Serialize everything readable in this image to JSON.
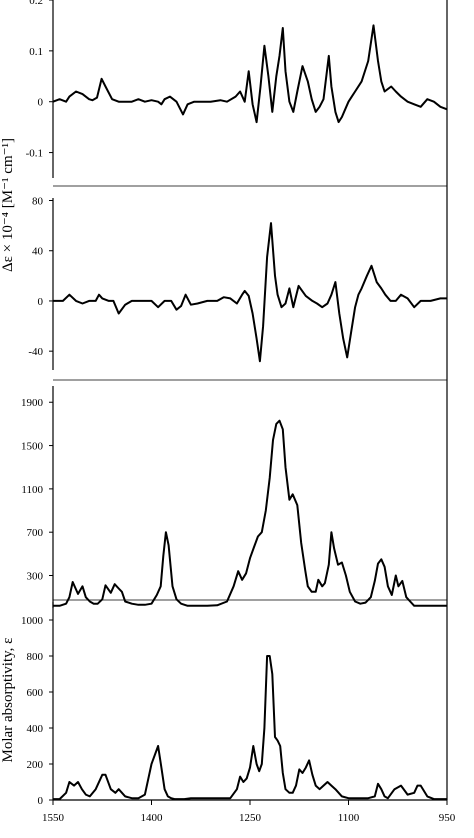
{
  "chart_data": {
    "type": "line",
    "x_axis": {
      "reversed": true,
      "xlim": [
        1550,
        950
      ],
      "ticks": [
        1550,
        1400,
        1250,
        1100,
        950
      ],
      "tick_labels": [
        "1550",
        "1400",
        "1250",
        "1100",
        "950"
      ]
    },
    "panels": [
      {
        "id": "p1",
        "ylim": [
          -0.15,
          0.2
        ],
        "yticks": [
          0.2,
          0.1,
          0,
          -0.1
        ],
        "ytick_labels": [
          "0.2",
          "0.1",
          "0",
          "-0.1"
        ],
        "ylabel": "",
        "series": [
          {
            "x": [
              1550,
              1540,
              1530,
              1525,
              1515,
              1505,
              1495,
              1490,
              1483,
              1476,
              1470,
              1460,
              1450,
              1440,
              1430,
              1420,
              1410,
              1400,
              1390,
              1385,
              1380,
              1372,
              1362,
              1352,
              1345,
              1335,
              1322,
              1310,
              1295,
              1285,
              1272,
              1265,
              1258,
              1252,
              1246,
              1240,
              1234,
              1228,
              1222,
              1216,
              1210,
              1205,
              1200,
              1196,
              1190,
              1184,
              1178,
              1170,
              1162,
              1156,
              1150,
              1144,
              1138,
              1130,
              1126,
              1120,
              1115,
              1110,
              1105,
              1100,
              1095,
              1090,
              1080,
              1070,
              1062,
              1055,
              1050,
              1045,
              1040,
              1035,
              1028,
              1020,
              1010,
              1000,
              990,
              980,
              970,
              960,
              950
            ],
            "y": [
              0,
              0.005,
              0,
              0.01,
              0.02,
              0.015,
              0.005,
              0.003,
              0.008,
              0.045,
              0.03,
              0.005,
              0,
              0,
              0,
              0.005,
              0,
              0.003,
              0,
              -0.005,
              0.005,
              0.01,
              0,
              -0.025,
              -0.005,
              0,
              0,
              0,
              0.003,
              0,
              0.01,
              0.02,
              0,
              0.06,
              -0.005,
              -0.04,
              0.03,
              0.11,
              0.05,
              -0.02,
              0.05,
              0.09,
              0.145,
              0.06,
              0,
              -0.02,
              0.02,
              0.07,
              0.04,
              0.005,
              -0.02,
              -0.01,
              0.005,
              0.09,
              0.03,
              -0.02,
              -0.04,
              -0.03,
              -0.015,
              0,
              0.01,
              0.02,
              0.04,
              0.08,
              0.15,
              0.08,
              0.04,
              0.02,
              0.025,
              0.03,
              0.02,
              0.01,
              0,
              -0.005,
              -0.01,
              0.005,
              0,
              -0.01,
              -0.015
            ]
          }
        ]
      },
      {
        "id": "p2",
        "ylim": [
          -55,
          82
        ],
        "yticks": [
          80,
          40,
          0,
          -40
        ],
        "ytick_labels": [
          "80",
          "40",
          "0",
          "-40"
        ],
        "ylabel": "Δε × 10⁻⁴ [M⁻¹ cm⁻¹]",
        "series": [
          {
            "x": [
              1550,
              1535,
              1525,
              1515,
              1505,
              1495,
              1485,
              1480,
              1475,
              1465,
              1458,
              1450,
              1440,
              1430,
              1415,
              1400,
              1390,
              1380,
              1370,
              1362,
              1355,
              1348,
              1340,
              1330,
              1315,
              1300,
              1290,
              1280,
              1270,
              1262,
              1258,
              1252,
              1246,
              1240,
              1235,
              1230,
              1224,
              1218,
              1212,
              1208,
              1202,
              1196,
              1190,
              1184,
              1176,
              1165,
              1155,
              1148,
              1140,
              1132,
              1126,
              1120,
              1114,
              1108,
              1102,
              1096,
              1090,
              1085,
              1080,
              1072,
              1065,
              1057,
              1050,
              1044,
              1036,
              1028,
              1020,
              1010,
              1000,
              990,
              975,
              960,
              950
            ],
            "y": [
              0,
              0,
              5,
              0,
              -2,
              0,
              0,
              5,
              2,
              0,
              0,
              -10,
              -3,
              0,
              0,
              0,
              -5,
              0,
              0,
              -7,
              -4,
              5,
              -3,
              -2,
              0,
              0,
              3,
              2,
              -2,
              5,
              8,
              4,
              -10,
              -30,
              -48,
              -20,
              35,
              62,
              20,
              5,
              -5,
              -2,
              10,
              -5,
              12,
              4,
              0,
              -2,
              -5,
              -2,
              5,
              15,
              -10,
              -30,
              -45,
              -25,
              -5,
              5,
              10,
              20,
              28,
              15,
              10,
              5,
              0,
              0,
              5,
              2,
              -5,
              0,
              0,
              2,
              2
            ]
          }
        ]
      },
      {
        "id": "p3",
        "ylim": [
          0,
          2050
        ],
        "yticks": [
          1900,
          1500,
          1100,
          700,
          300
        ],
        "ytick_labels": [
          "1900",
          "1500",
          "1100",
          "700",
          "300"
        ],
        "ylabel": "",
        "series": [
          {
            "x": [
              1550,
              1540,
              1530,
              1525,
              1520,
              1512,
              1505,
              1500,
              1494,
              1488,
              1482,
              1475,
              1470,
              1462,
              1456,
              1450,
              1445,
              1440,
              1430,
              1420,
              1410,
              1400,
              1392,
              1386,
              1382,
              1378,
              1374,
              1368,
              1362,
              1355,
              1345,
              1330,
              1315,
              1300,
              1285,
              1275,
              1268,
              1262,
              1256,
              1250,
              1244,
              1238,
              1232,
              1226,
              1220,
              1215,
              1210,
              1205,
              1200,
              1196,
              1190,
              1185,
              1178,
              1172,
              1166,
              1162,
              1156,
              1150,
              1146,
              1140,
              1136,
              1130,
              1126,
              1122,
              1116,
              1110,
              1104,
              1098,
              1090,
              1082,
              1074,
              1066,
              1060,
              1055,
              1050,
              1045,
              1040,
              1034,
              1028,
              1024,
              1018,
              1012,
              1006,
              1000,
              994,
              988,
              980,
              970,
              960,
              950
            ],
            "y": [
              20,
              20,
              40,
              100,
              240,
              130,
              200,
              100,
              60,
              40,
              40,
              80,
              210,
              140,
              220,
              180,
              150,
              60,
              40,
              30,
              30,
              40,
              120,
              200,
              480,
              700,
              580,
              200,
              80,
              40,
              20,
              20,
              20,
              25,
              60,
              200,
              340,
              260,
              320,
              460,
              560,
              660,
              700,
              900,
              1200,
              1550,
              1700,
              1730,
              1650,
              1300,
              1000,
              1050,
              950,
              600,
              350,
              200,
              150,
              150,
              260,
              200,
              230,
              400,
              700,
              550,
              400,
              420,
              300,
              150,
              60,
              40,
              50,
              100,
              250,
              410,
              450,
              380,
              200,
              120,
              300,
              200,
              250,
              100,
              60,
              20,
              20,
              20,
              20,
              20,
              20,
              20
            ]
          }
        ]
      },
      {
        "id": "p4",
        "ylim": [
          0,
          1100
        ],
        "yticks": [
          1000,
          800,
          600,
          400,
          200,
          0
        ],
        "ytick_labels": [
          "1000",
          "800",
          "600",
          "400",
          "200",
          "0"
        ],
        "ylabel": "Molar absorptivity, ε",
        "series": [
          {
            "x": [
              1550,
              1540,
              1530,
              1525,
              1518,
              1512,
              1506,
              1500,
              1494,
              1485,
              1475,
              1470,
              1462,
              1455,
              1450,
              1440,
              1430,
              1420,
              1410,
              1400,
              1390,
              1385,
              1380,
              1375,
              1370,
              1365,
              1358,
              1350,
              1340,
              1330,
              1310,
              1295,
              1280,
              1270,
              1265,
              1260,
              1255,
              1250,
              1245,
              1240,
              1236,
              1232,
              1228,
              1224,
              1220,
              1216,
              1212,
              1208,
              1204,
              1200,
              1196,
              1190,
              1185,
              1180,
              1175,
              1170,
              1165,
              1160,
              1155,
              1150,
              1144,
              1138,
              1132,
              1126,
              1120,
              1110,
              1100,
              1090,
              1080,
              1070,
              1060,
              1055,
              1050,
              1045,
              1040,
              1030,
              1020,
              1010,
              1000,
              995,
              990,
              980,
              970,
              960,
              950
            ],
            "y": [
              5,
              5,
              40,
              100,
              80,
              100,
              60,
              30,
              20,
              60,
              140,
              140,
              60,
              40,
              60,
              20,
              10,
              10,
              30,
              200,
              300,
              180,
              60,
              20,
              10,
              5,
              5,
              5,
              10,
              10,
              10,
              10,
              10,
              60,
              130,
              100,
              120,
              180,
              300,
              200,
              160,
              200,
              400,
              800,
              800,
              700,
              350,
              330,
              300,
              150,
              60,
              40,
              40,
              80,
              170,
              150,
              180,
              220,
              140,
              80,
              60,
              80,
              100,
              80,
              60,
              20,
              10,
              10,
              10,
              10,
              20,
              90,
              60,
              20,
              10,
              60,
              80,
              30,
              40,
              80,
              80,
              20,
              5,
              5,
              5
            ]
          }
        ]
      }
    ]
  }
}
